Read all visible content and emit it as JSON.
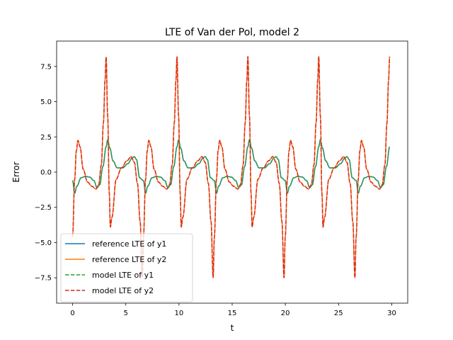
{
  "chart_data": {
    "type": "line",
    "title": "LTE of Van der Pol, model 2",
    "xlabel": "t",
    "ylabel": "Error",
    "xlim": [
      -1.5,
      31.5
    ],
    "ylim": [
      -9.3,
      9.3
    ],
    "xticks": [
      0,
      5,
      10,
      15,
      20,
      25,
      30
    ],
    "xtick_labels": [
      "0",
      "5",
      "10",
      "15",
      "20",
      "25",
      "30"
    ],
    "yticks": [
      -7.5,
      -5.0,
      -2.5,
      0.0,
      2.5,
      5.0,
      7.5
    ],
    "ytick_labels": [
      "−7.5",
      "−5.0",
      "−2.5",
      "0.0",
      "2.5",
      "5.0",
      "7.5"
    ],
    "grid": false,
    "legend_position": "lower left",
    "period": 6.663,
    "x_start": 0,
    "x_end": 29.8,
    "series": [
      {
        "name": "reference LTE of y1",
        "color": "#1f77b4",
        "linestyle": "solid",
        "cycle_points": [
          [
            0.0,
            -0.6
          ],
          [
            0.2,
            -1.5
          ],
          [
            0.4,
            -1.0
          ],
          [
            0.8,
            -0.4
          ],
          [
            1.2,
            -0.3
          ],
          [
            1.6,
            -0.35
          ],
          [
            2.0,
            -0.6
          ],
          [
            2.3,
            -1.1
          ],
          [
            2.55,
            -0.9
          ],
          [
            2.85,
            0.4
          ],
          [
            3.15,
            1.8
          ],
          [
            3.3,
            2.3
          ],
          [
            3.5,
            1.7
          ],
          [
            3.8,
            0.8
          ],
          [
            4.2,
            0.3
          ],
          [
            4.7,
            0.3
          ],
          [
            5.2,
            0.6
          ],
          [
            5.6,
            1.0
          ],
          [
            5.8,
            1.1
          ],
          [
            6.0,
            0.9
          ],
          [
            6.3,
            -0.4
          ],
          [
            6.663,
            -0.6
          ]
        ]
      },
      {
        "name": "reference LTE of y2",
        "color": "#ff7f0e",
        "linestyle": "solid",
        "cycle_points": [
          [
            0.0,
            -4.6
          ],
          [
            0.2,
            -0.5
          ],
          [
            0.35,
            1.5
          ],
          [
            0.5,
            2.25
          ],
          [
            0.7,
            1.8
          ],
          [
            1.0,
            0.2
          ],
          [
            1.4,
            -0.7
          ],
          [
            1.8,
            -1.0
          ],
          [
            2.2,
            -1.2
          ],
          [
            2.45,
            -0.9
          ],
          [
            2.7,
            0.5
          ],
          [
            2.9,
            3.5
          ],
          [
            3.05,
            6.5
          ],
          [
            3.15,
            8.2
          ],
          [
            3.3,
            4.0
          ],
          [
            3.45,
            -1.5
          ],
          [
            3.55,
            -3.9
          ],
          [
            3.7,
            -3.2
          ],
          [
            4.1,
            -0.5
          ],
          [
            4.6,
            0.3
          ],
          [
            5.1,
            0.8
          ],
          [
            5.5,
            1.1
          ],
          [
            5.8,
            0.7
          ],
          [
            6.1,
            -0.8
          ],
          [
            6.35,
            -3.5
          ],
          [
            6.55,
            -7.5
          ],
          [
            6.663,
            -4.6
          ]
        ]
      },
      {
        "name": "model LTE of y1",
        "color": "#2ca02c",
        "linestyle": "dashed",
        "cycle_points": [
          [
            0.0,
            -0.6
          ],
          [
            0.2,
            -1.5
          ],
          [
            0.4,
            -1.0
          ],
          [
            0.8,
            -0.4
          ],
          [
            1.2,
            -0.3
          ],
          [
            1.6,
            -0.35
          ],
          [
            2.0,
            -0.6
          ],
          [
            2.3,
            -1.1
          ],
          [
            2.55,
            -0.9
          ],
          [
            2.85,
            0.4
          ],
          [
            3.15,
            1.8
          ],
          [
            3.3,
            2.3
          ],
          [
            3.5,
            1.7
          ],
          [
            3.8,
            0.8
          ],
          [
            4.2,
            0.3
          ],
          [
            4.7,
            0.3
          ],
          [
            5.2,
            0.6
          ],
          [
            5.6,
            1.0
          ],
          [
            5.8,
            1.1
          ],
          [
            6.0,
            0.9
          ],
          [
            6.3,
            -0.4
          ],
          [
            6.663,
            -0.6
          ]
        ]
      },
      {
        "name": "model LTE of y2",
        "color": "#d62728",
        "linestyle": "dashed",
        "cycle_points": [
          [
            0.0,
            -4.6
          ],
          [
            0.2,
            -0.5
          ],
          [
            0.35,
            1.5
          ],
          [
            0.5,
            2.25
          ],
          [
            0.7,
            1.8
          ],
          [
            1.0,
            0.2
          ],
          [
            1.4,
            -0.7
          ],
          [
            1.8,
            -1.0
          ],
          [
            2.2,
            -1.2
          ],
          [
            2.45,
            -0.9
          ],
          [
            2.7,
            0.5
          ],
          [
            2.9,
            3.5
          ],
          [
            3.05,
            6.5
          ],
          [
            3.15,
            8.2
          ],
          [
            3.3,
            4.0
          ],
          [
            3.45,
            -1.5
          ],
          [
            3.55,
            -3.9
          ],
          [
            3.7,
            -3.2
          ],
          [
            4.1,
            -0.5
          ],
          [
            4.6,
            0.3
          ],
          [
            5.1,
            0.8
          ],
          [
            5.5,
            1.1
          ],
          [
            5.8,
            0.7
          ],
          [
            6.1,
            -0.8
          ],
          [
            6.35,
            -3.5
          ],
          [
            6.55,
            -7.5
          ],
          [
            6.663,
            -4.6
          ]
        ]
      }
    ]
  }
}
